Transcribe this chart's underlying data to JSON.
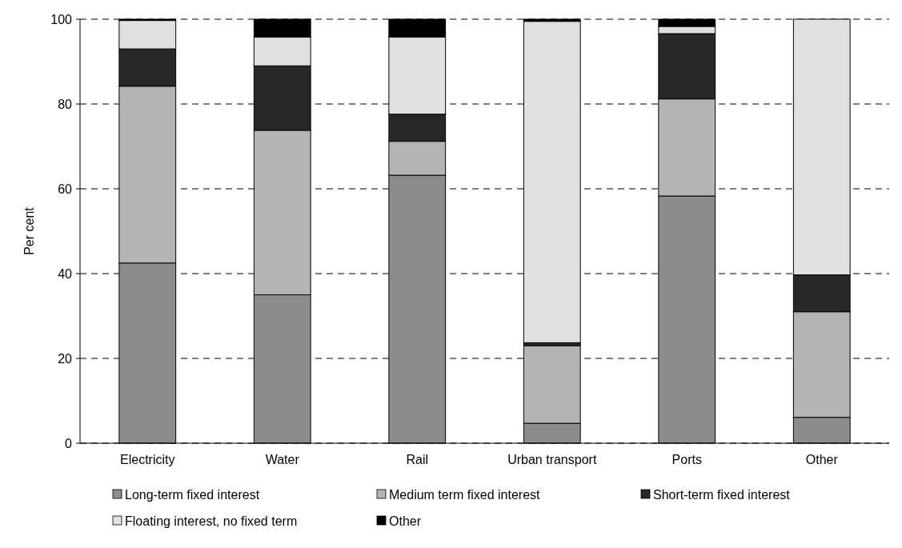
{
  "chart_data": {
    "type": "bar",
    "stacked": true,
    "ylabel": "Per cent",
    "categories": [
      "Electricity",
      "Water",
      "Rail",
      "Urban transport",
      "Ports",
      "Other"
    ],
    "series": [
      {
        "name": "Long-term fixed interest",
        "color": "#8c8c8c",
        "values": [
          42.5,
          35,
          63.2,
          4.7,
          58.3,
          6.1
        ]
      },
      {
        "name": "Medium term fixed interest",
        "color": "#b4b4b4",
        "values": [
          41.7,
          38.8,
          8,
          18.3,
          22.9,
          24.9
        ]
      },
      {
        "name": "Short-term fixed interest",
        "color": "#282828",
        "values": [
          8.8,
          15.2,
          6.4,
          0.7,
          15.4,
          8.7
        ]
      },
      {
        "name": "Floating interest, no fixed term",
        "color": "#e0e0e0",
        "values": [
          6.7,
          6.8,
          18.2,
          75.8,
          1.7,
          60.3
        ]
      },
      {
        "name": "Other",
        "color": "#000000",
        "values": [
          0.3,
          4.2,
          4.2,
          0.5,
          1.7,
          0
        ]
      }
    ],
    "ylim": [
      0,
      100
    ],
    "yticks": [
      0,
      20,
      40,
      60,
      80,
      100
    ],
    "grid": "y",
    "legend": "bottom"
  }
}
